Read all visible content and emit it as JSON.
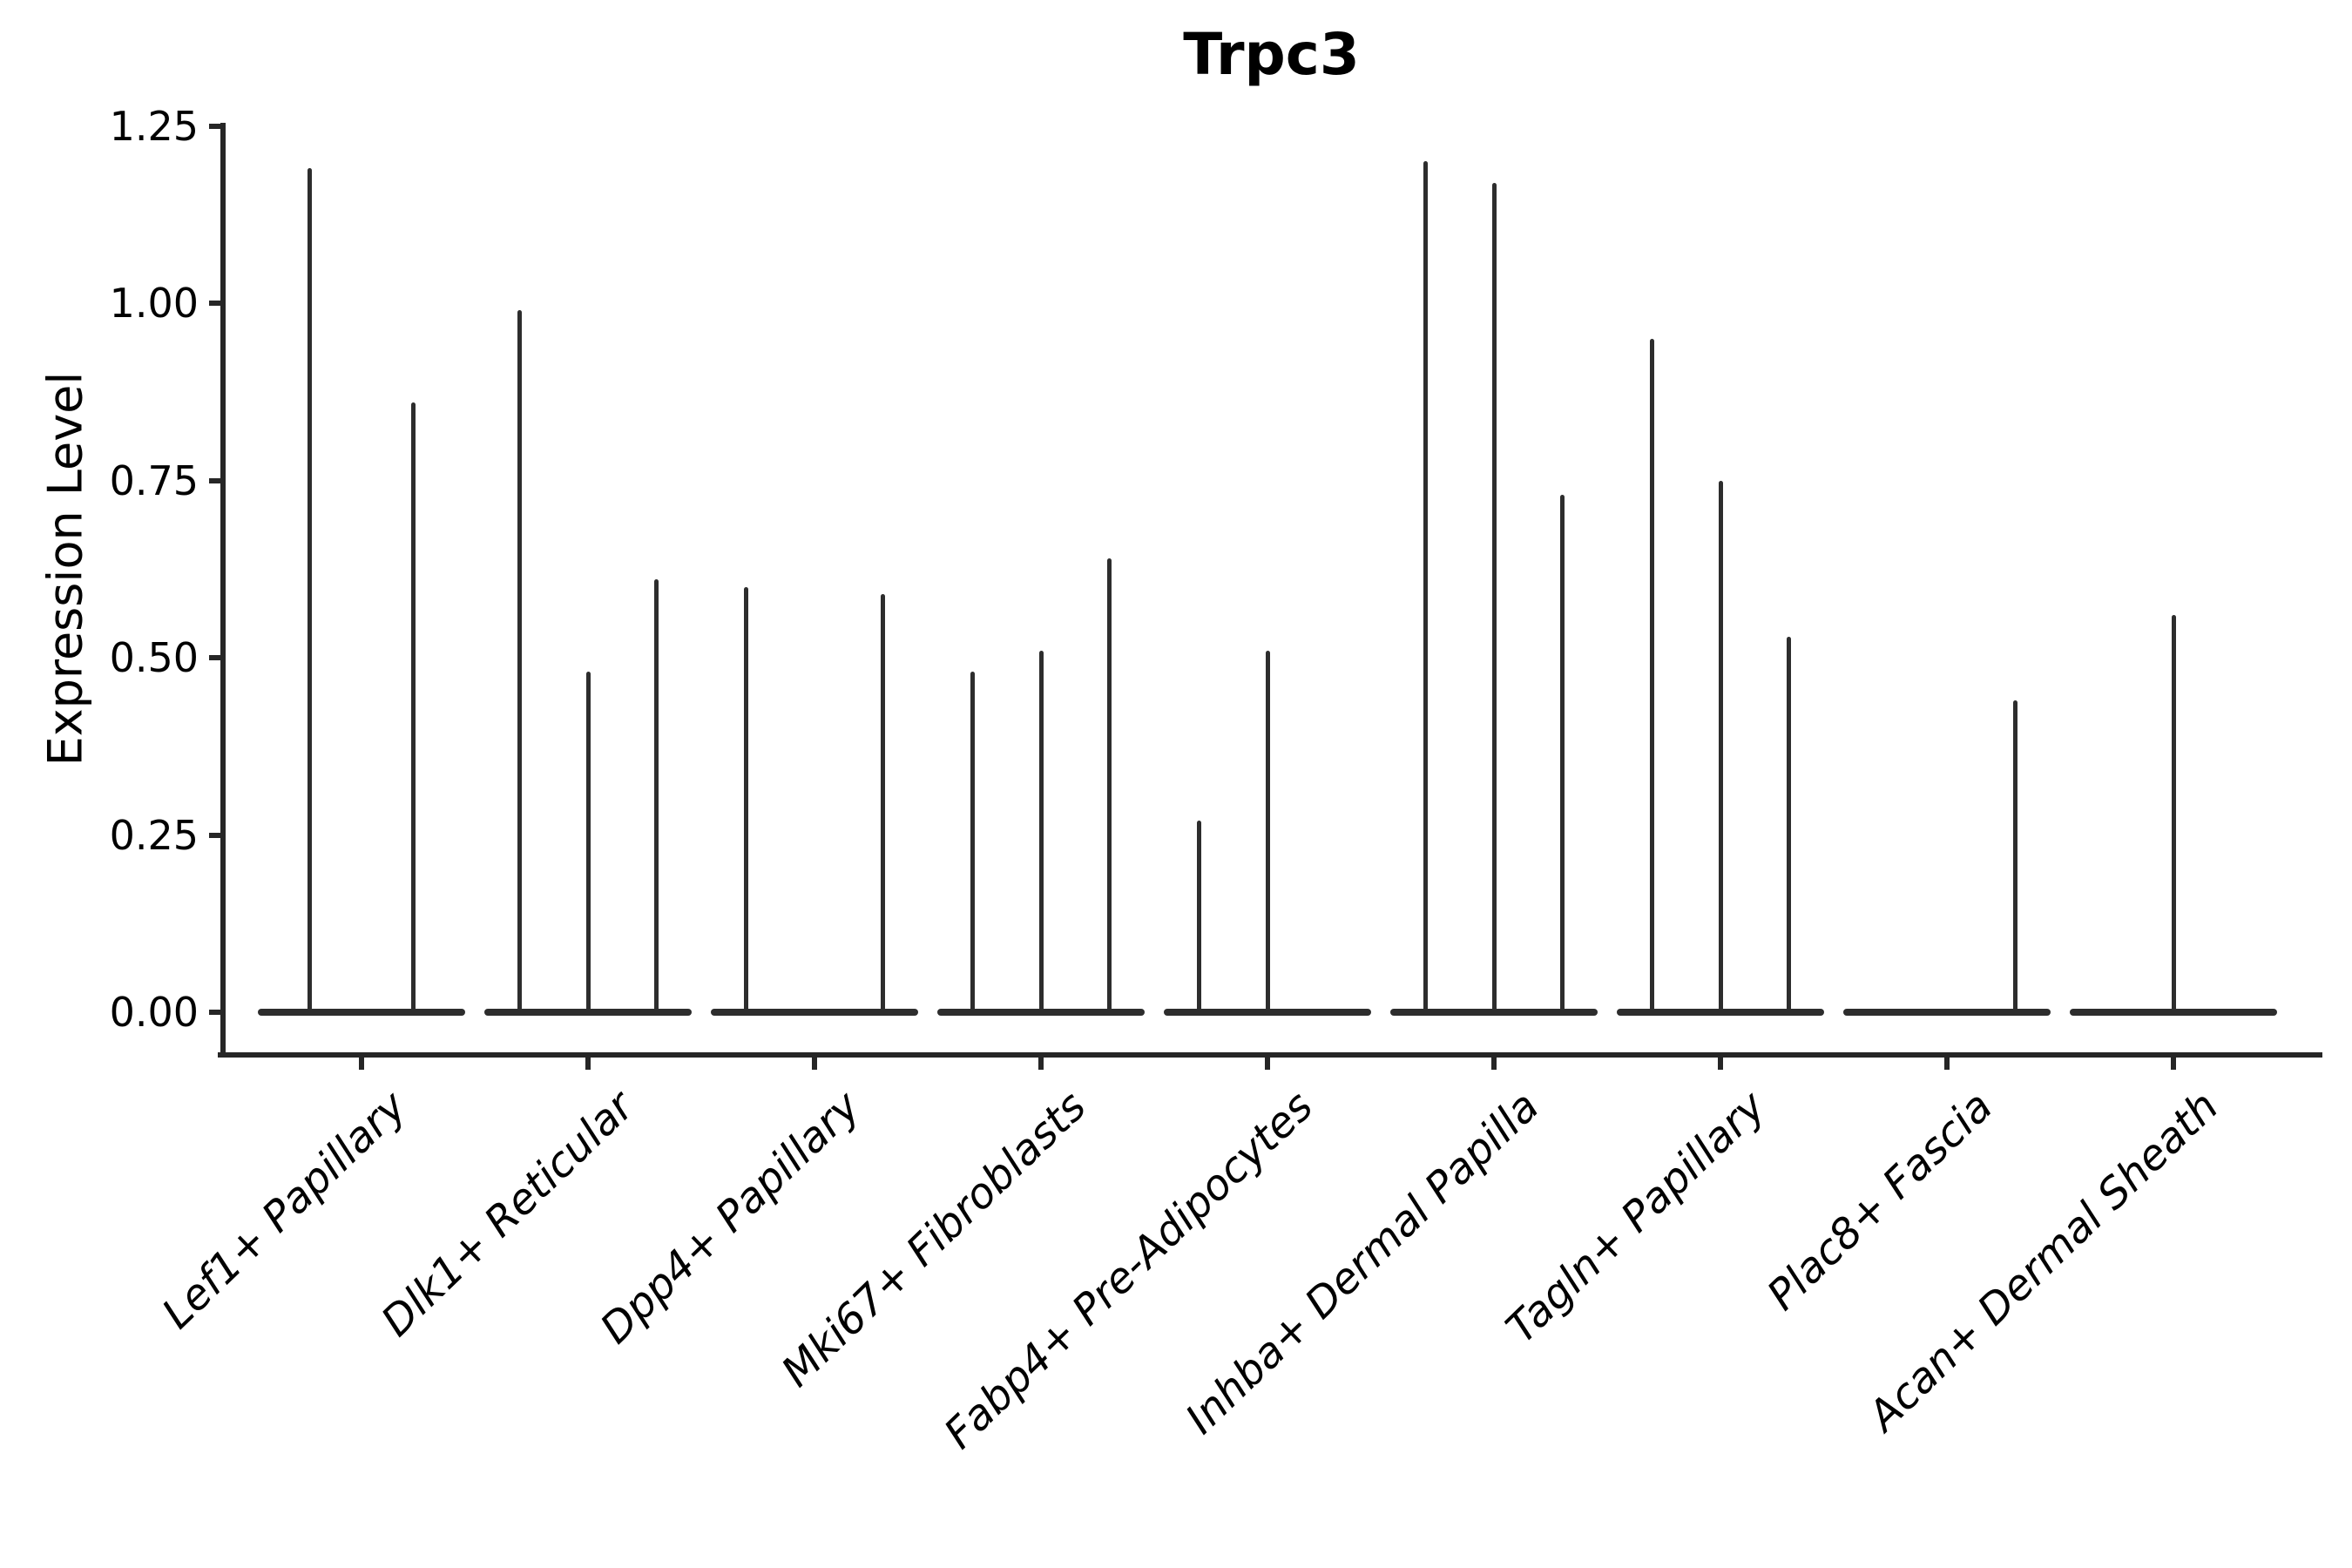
{
  "chart_data": {
    "type": "violin",
    "title": "Trpc3",
    "ylabel": "Expression Level",
    "xlabel": "",
    "ylim": [
      0,
      1.25
    ],
    "y_tick_labels": [
      "0.00",
      "0.25",
      "0.50",
      "0.75",
      "1.00",
      "1.25"
    ],
    "y_tick_values": [
      0,
      0.25,
      0.5,
      0.75,
      1.0,
      1.25
    ],
    "grid": false,
    "legend": "none",
    "spines": [
      "left",
      "bottom"
    ],
    "x_tick_label_style": "italic",
    "x_tick_label_rotation_deg": 44,
    "categories": [
      "Lef1+ Papillary",
      "Dlk1+ Reticular",
      "Dpp4+ Papillary",
      "Mki67+ Fibroblasts",
      "Fabp4+ Pre-Adipocytes",
      "Inhba+ Dermal Papilla",
      "Tagln+ Papillary",
      "Plac8+ Fascia",
      "Acan+ Dermal Sheath"
    ],
    "groups": [
      {
        "category": "Lef1+ Papillary",
        "violins": [
          {
            "slot": 0.25,
            "max": 1.19
          },
          {
            "slot": 0.75,
            "max": 0.86
          }
        ]
      },
      {
        "category": "Dlk1+ Reticular",
        "violins": [
          {
            "slot": 0.17,
            "max": 0.99
          },
          {
            "slot": 0.5,
            "max": 0.48
          },
          {
            "slot": 0.83,
            "max": 0.61
          }
        ]
      },
      {
        "category": "Dpp4+ Papillary",
        "violins": [
          {
            "slot": 0.17,
            "max": 0.6
          },
          {
            "slot": 0.83,
            "max": 0.59
          }
        ]
      },
      {
        "category": "Mki67+ Fibroblasts",
        "violins": [
          {
            "slot": 0.17,
            "max": 0.48
          },
          {
            "slot": 0.5,
            "max": 0.51
          },
          {
            "slot": 0.83,
            "max": 0.64
          }
        ]
      },
      {
        "category": "Fabp4+ Pre-Adipocytes",
        "violins": [
          {
            "slot": 0.17,
            "max": 0.27
          },
          {
            "slot": 0.5,
            "max": 0.51
          }
        ]
      },
      {
        "category": "Inhba+ Dermal Papilla",
        "violins": [
          {
            "slot": 0.17,
            "max": 1.2
          },
          {
            "slot": 0.5,
            "max": 1.17
          },
          {
            "slot": 0.83,
            "max": 0.73
          }
        ]
      },
      {
        "category": "Tagln+ Papillary",
        "violins": [
          {
            "slot": 0.17,
            "max": 0.95
          },
          {
            "slot": 0.5,
            "max": 0.75
          },
          {
            "slot": 0.83,
            "max": 0.53
          }
        ]
      },
      {
        "category": "Plac8+ Fascia",
        "violins": [
          {
            "slot": 0.83,
            "max": 0.44
          }
        ]
      },
      {
        "category": "Acan+ Dermal Sheath",
        "violins": [
          {
            "slot": 0.5,
            "max": 0.56
          }
        ]
      }
    ]
  }
}
